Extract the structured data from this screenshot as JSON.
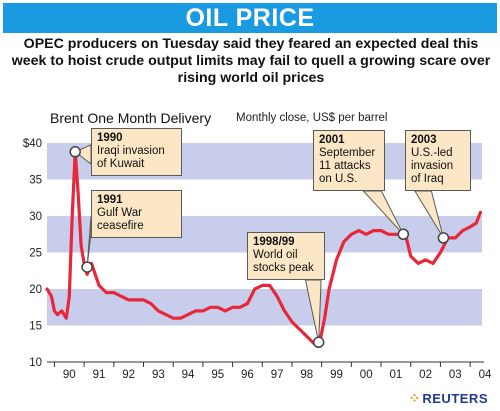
{
  "header": {
    "title": "OIL PRICE",
    "subtitle": "OPEC producers on Tuesday said they feared an expected deal this week to hoist crude output limits may fail to quell a growing scare over rising world oil prices"
  },
  "source": "REUTERS",
  "colors": {
    "banner": "#1a9ae0",
    "line": "#e8283a",
    "band": "#c7cdea",
    "annotation": "#fbe6c6",
    "source": "#1f3a93"
  },
  "chart_data": {
    "type": "line",
    "title": "Brent One Month Delivery",
    "subtitle": "Monthly close, US$ per barrel",
    "xlabel": "",
    "ylabel": "",
    "ylim": [
      10,
      40
    ],
    "xlim": [
      1989.75,
      2004.4
    ],
    "yticks": [
      "$40",
      "35",
      "30",
      "25",
      "20",
      "15",
      "10"
    ],
    "ytick_values": [
      40,
      35,
      30,
      25,
      20,
      15,
      10
    ],
    "xticks": [
      "90",
      "91",
      "92",
      "93",
      "94",
      "95",
      "96",
      "97",
      "98",
      "99",
      "00",
      "01",
      "02",
      "03",
      "04"
    ],
    "xtick_values": [
      1990,
      1991,
      1992,
      1993,
      1994,
      1995,
      1996,
      1997,
      1998,
      1999,
      2000,
      2001,
      2002,
      2003,
      2004
    ],
    "bands": [
      [
        15,
        20
      ],
      [
        25,
        30
      ],
      [
        35,
        40
      ]
    ],
    "grid": false,
    "legend": "none",
    "series": [
      {
        "x": [
          1989.75,
          1989.9,
          1990.0,
          1990.1,
          1990.25,
          1990.4,
          1990.5,
          1990.6,
          1990.7,
          1990.8,
          1990.9,
          1991.0,
          1991.1,
          1991.25,
          1991.5,
          1991.75,
          1992.0,
          1992.25,
          1992.5,
          1992.75,
          1993.0,
          1993.25,
          1993.5,
          1993.75,
          1994.0,
          1994.25,
          1994.5,
          1994.75,
          1995.0,
          1995.25,
          1995.5,
          1995.75,
          1996.0,
          1996.25,
          1996.5,
          1996.75,
          1997.0,
          1997.25,
          1997.5,
          1997.75,
          1998.0,
          1998.25,
          1998.5,
          1998.75,
          1998.95,
          1999.1,
          1999.25,
          1999.5,
          1999.75,
          2000.0,
          2000.25,
          2000.5,
          2000.75,
          2001.0,
          2001.25,
          2001.5,
          2001.7,
          2001.85,
          2002.0,
          2002.25,
          2002.5,
          2002.75,
          2003.0,
          2003.25,
          2003.5,
          2003.75,
          2004.0,
          2004.2,
          2004.35
        ],
        "values": [
          20.0,
          19.0,
          17.0,
          16.5,
          17.0,
          16.0,
          19.0,
          30.0,
          38.8,
          33.0,
          26.0,
          23.5,
          22.0,
          23.5,
          20.5,
          19.5,
          19.5,
          19.0,
          18.5,
          18.5,
          18.5,
          18.0,
          17.0,
          16.5,
          16.0,
          16.0,
          16.5,
          17.0,
          17.0,
          17.5,
          17.5,
          17.0,
          17.5,
          17.5,
          18.0,
          20.0,
          20.5,
          20.5,
          19.0,
          17.0,
          15.5,
          14.5,
          13.5,
          12.5,
          13.0,
          16.0,
          20.0,
          24.0,
          26.5,
          27.5,
          28.0,
          27.5,
          28.0,
          28.0,
          27.5,
          27.5,
          27.5,
          27.0,
          24.5,
          23.5,
          24.0,
          23.5,
          25.0,
          27.0,
          27.0,
          28.0,
          28.5,
          29.0,
          30.5
        ]
      }
    ],
    "annotations": [
      {
        "year": "1990",
        "text": "Iraqi invasion\nof Kuwait",
        "x": 1990.7,
        "y": 38.8
      },
      {
        "year": "1991",
        "text": "Gulf War\nceasefire",
        "x": 1991.1,
        "y": 23.0
      },
      {
        "year": "1998/99",
        "text": "World oil\nstocks peak",
        "x": 1998.9,
        "y": 12.7
      },
      {
        "year": "2001",
        "text": "September\n11 attacks\non U.S.",
        "x": 2001.75,
        "y": 27.5
      },
      {
        "year": "2003",
        "text": "U.S.-led\ninvasion\nof Iraq",
        "x": 2003.1,
        "y": 27.0
      }
    ]
  }
}
